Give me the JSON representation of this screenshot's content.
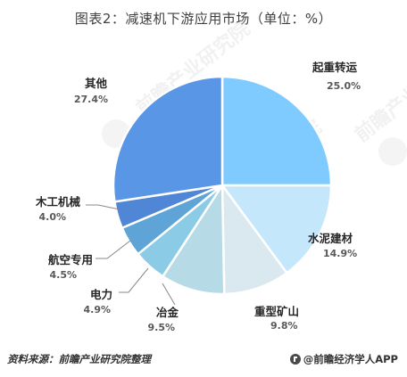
{
  "title": "图表2：减速机下游应用市场（单位：%）",
  "footer": {
    "source": "资料来源：前瞻产业研究院整理",
    "brand": "@前瞻经济学人APP"
  },
  "watermark": "前瞻产业研究院",
  "chart_data": {
    "type": "pie",
    "title": "图表2：减速机下游应用市场（单位：%）",
    "unit": "%",
    "slices": [
      {
        "label": "起重转运",
        "value": 25.0,
        "display": "25.0%",
        "color": "#7fcbff"
      },
      {
        "label": "水泥建材",
        "value": 14.9,
        "display": "14.9%",
        "color": "#c5e7fb"
      },
      {
        "label": "重型矿山",
        "value": 9.8,
        "display": "9.8%",
        "color": "#d9e9ef"
      },
      {
        "label": "冶金",
        "value": 9.5,
        "display": "9.5%",
        "color": "#b7dbe6"
      },
      {
        "label": "电力",
        "value": 4.9,
        "display": "4.9%",
        "color": "#8ccbe6"
      },
      {
        "label": "航空专用",
        "value": 4.5,
        "display": "4.5%",
        "color": "#5ea4d6"
      },
      {
        "label": "木工机械",
        "value": 4.0,
        "display": "4.0%",
        "color": "#4f86d6"
      },
      {
        "label": "其他",
        "value": 27.4,
        "display": "27.4%",
        "color": "#5a96e6"
      }
    ],
    "start_angle_deg": 0,
    "direction": "clockwise"
  }
}
